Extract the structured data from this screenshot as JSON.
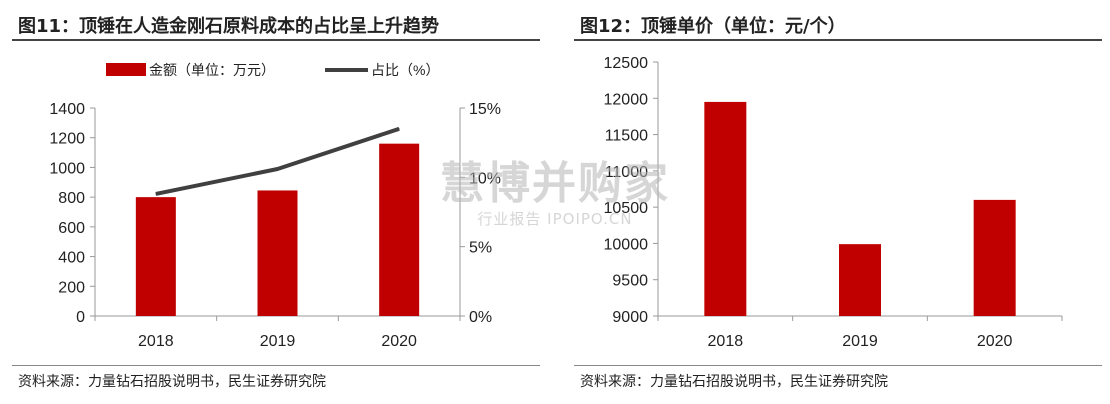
{
  "colors": {
    "bar": "#c00000",
    "line": "#404040",
    "axis": "#999999",
    "text": "#222222",
    "watermark": "#b4b4b4"
  },
  "watermark": {
    "main": "慧博并购家",
    "sub": "行业报告 IPOIPO.CN"
  },
  "chart_data": [
    {
      "type": "bar",
      "figure_label": "图11：顶锤在人造金刚石原料成本的占比呈上升趋势",
      "source": "资料来源：力量钻石招股说明书，民生证券研究院",
      "categories": [
        "2018",
        "2019",
        "2020"
      ],
      "series": [
        {
          "name": "金额（单位：万元）",
          "type": "bar",
          "axis": "left",
          "values": [
            800,
            845,
            1160
          ]
        },
        {
          "name": "占比（%）",
          "type": "line",
          "axis": "right",
          "values": [
            8.8,
            10.6,
            13.5
          ]
        }
      ],
      "ylim_left": [
        0,
        1400
      ],
      "yticks_left": [
        "0",
        "200",
        "400",
        "600",
        "800",
        "1000",
        "1200",
        "1400"
      ],
      "ylim_right": [
        0,
        15
      ],
      "yticks_right": [
        "0%",
        "5%",
        "10%",
        "15%"
      ],
      "legend_position": "top",
      "grid": false
    },
    {
      "type": "bar",
      "figure_label": "图12：顶锤单价（单位：元/个）",
      "source": "资料来源：力量钻石招股说明书，民生证券研究院",
      "categories": [
        "2018",
        "2019",
        "2020"
      ],
      "series": [
        {
          "type": "bar",
          "values": [
            11950,
            9990,
            10600
          ]
        }
      ],
      "ylim": [
        9000,
        12500
      ],
      "yticks": [
        "9000",
        "9500",
        "10000",
        "10500",
        "11000",
        "11500",
        "12000",
        "12500"
      ],
      "grid": false
    }
  ]
}
